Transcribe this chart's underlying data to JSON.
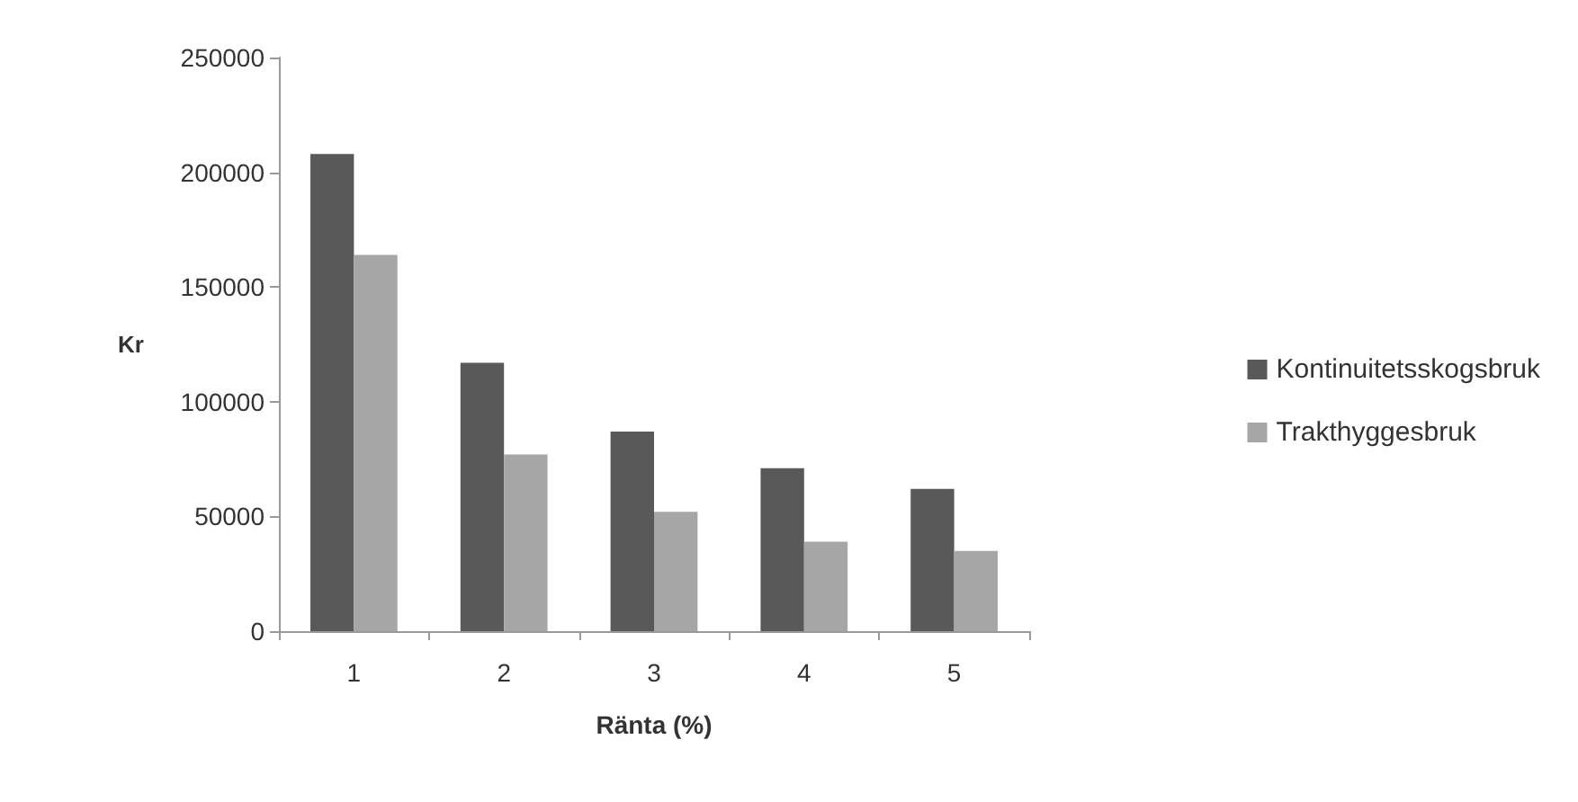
{
  "chart_data": {
    "type": "bar",
    "xlabel": "Ränta (%)",
    "ylabel": "Kr",
    "categories": [
      "1",
      "2",
      "3",
      "4",
      "5"
    ],
    "series": [
      {
        "name": "Kontinuitetsskogsbruk",
        "color": "#595959",
        "values": [
          208000,
          117000,
          87000,
          71000,
          62000
        ]
      },
      {
        "name": "Trakthyggesbruk",
        "color": "#a6a6a6",
        "values": [
          164000,
          77000,
          52000,
          39000,
          35000
        ]
      }
    ],
    "ylim": [
      0,
      250000
    ],
    "yticks": [
      0,
      50000,
      100000,
      150000,
      200000,
      250000
    ],
    "grid": false,
    "legend": "right"
  }
}
